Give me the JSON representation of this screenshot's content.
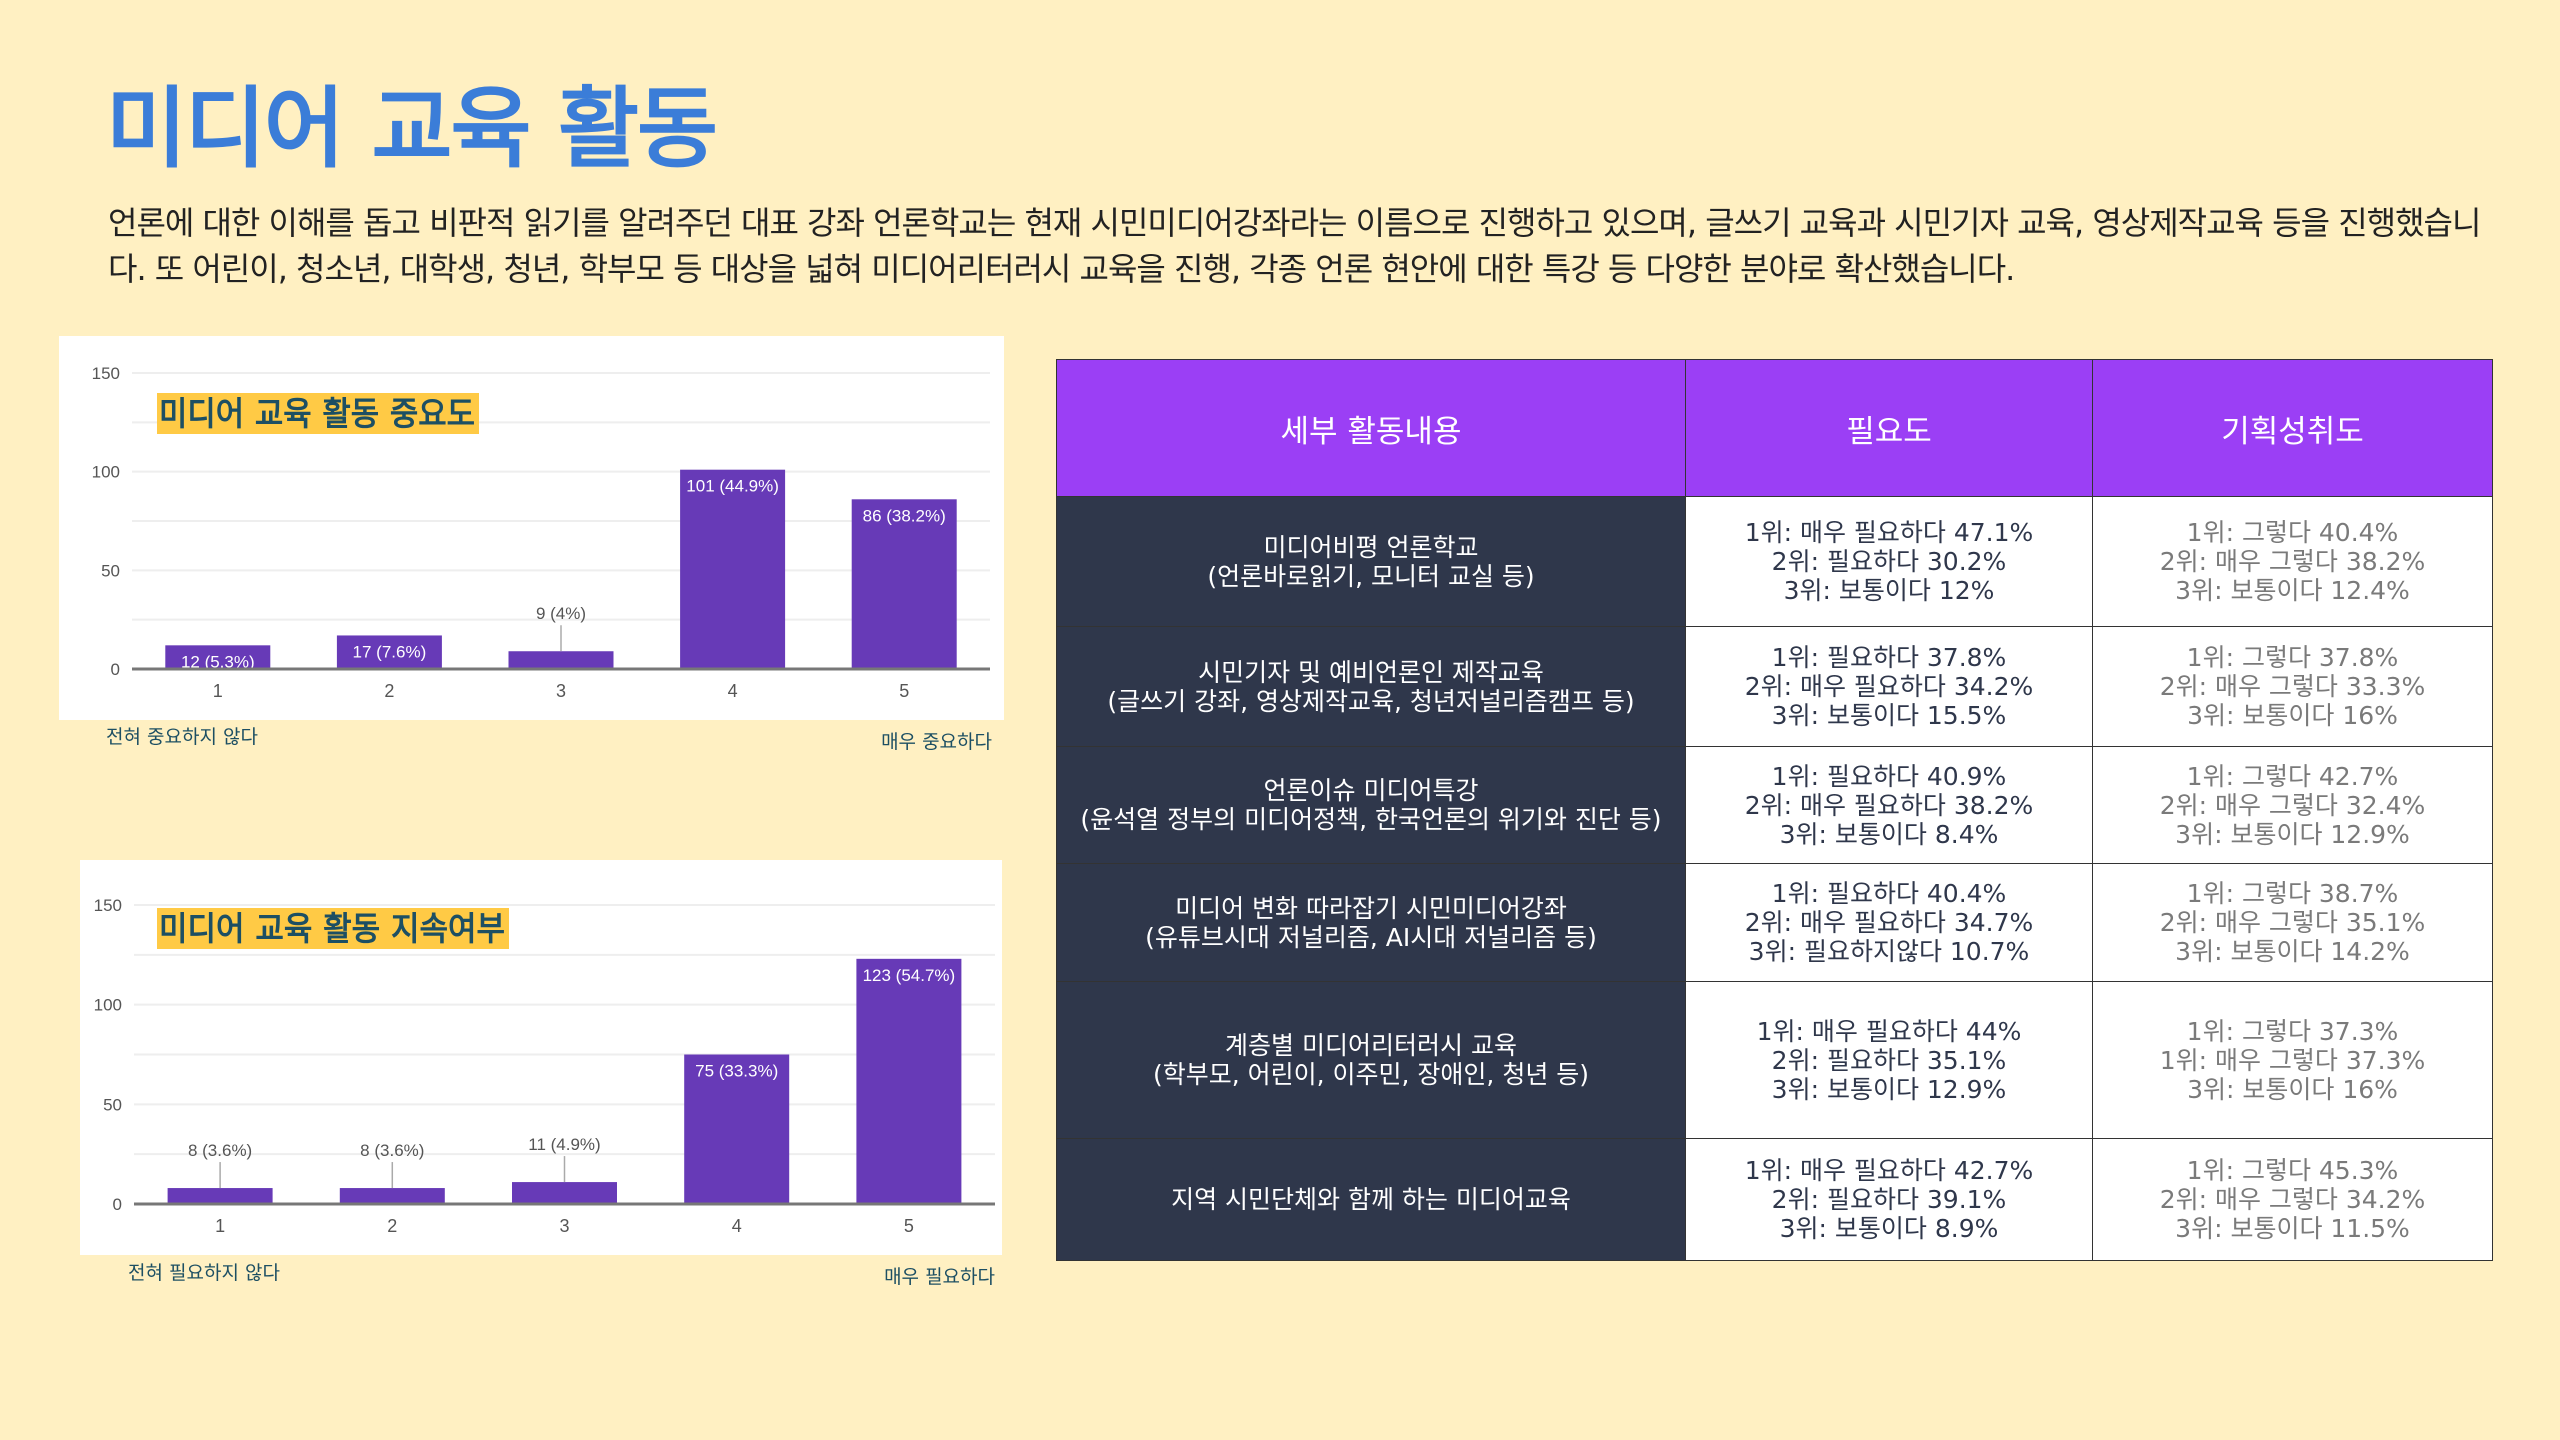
{
  "title": "미디어 교육 활동",
  "intro": "언론에 대한 이해를 돕고 비판적 읽기를 알려주던 대표 강좌 언론학교는 현재 시민미디어강좌라는 이름으로 진행하고 있으며, 글쓰기 교육과 시민기자 교육, 영상제작교육 등을 진행했습니다. 또 어린이, 청소년, 대학생, 청년, 학부모 등 대상을 넓혀 미디어리터러시 교육을 진행, 각종 언론 현안에 대한 특강 등 다양한 분야로 확산했습니다.",
  "colors": {
    "background": "#fff0c2",
    "title": "#3b7dd8",
    "bar": "#673ab7",
    "header": "#9b3ff5",
    "activity_cell": "#2f374b",
    "chart_title_bg": "#ffca45"
  },
  "chart_data": [
    {
      "type": "bar",
      "title": "미디어 교육 활동 중요도",
      "categories": [
        "1",
        "2",
        "3",
        "4",
        "5"
      ],
      "values": [
        12,
        17,
        9,
        101,
        86
      ],
      "data_labels": [
        "12 (5.3%)",
        "17 (7.6%)",
        "9 (4%)",
        "101 (44.9%)",
        "86 (38.2%)"
      ],
      "yticks": [
        "0",
        "50",
        "100",
        "150"
      ],
      "ylim": [
        0,
        150
      ],
      "grid": true,
      "low_label": "전혀 중요하지 않다",
      "high_label": "매우 중요하다"
    },
    {
      "type": "bar",
      "title": "미디어 교육 활동 지속여부",
      "categories": [
        "1",
        "2",
        "3",
        "4",
        "5"
      ],
      "values": [
        8,
        8,
        11,
        75,
        123
      ],
      "data_labels": [
        "8 (3.6%)",
        "8 (3.6%)",
        "11 (4.9%)",
        "75 (33.3%)",
        "123 (54.7%)"
      ],
      "yticks": [
        "0",
        "50",
        "100",
        "150"
      ],
      "ylim": [
        0,
        150
      ],
      "grid": true,
      "low_label": "전혀 필요하지  않다",
      "high_label": "매우 필요하다"
    }
  ],
  "table": {
    "headers": [
      "세부 활동내용",
      "필요도",
      "기획성취도"
    ],
    "rows": [
      {
        "activity": [
          "미디어비평 언론학교",
          "(언론바로읽기, 모니터 교실 등)"
        ],
        "need": [
          "1위: 매우 필요하다 47.1%",
          "2위: 필요하다 30.2%",
          "3위: 보통이다 12%"
        ],
        "achievement": [
          "1위: 그렇다 40.4%",
          "2위: 매우 그렇다 38.2%",
          "3위: 보통이다 12.4%"
        ]
      },
      {
        "activity": [
          "시민기자 및 예비언론인 제작교육",
          "(글쓰기 강좌, 영상제작교육, 청년저널리즘캠프 등)"
        ],
        "need": [
          "1위: 필요하다 37.8%",
          "2위: 매우 필요하다 34.2%",
          "3위: 보통이다 15.5%"
        ],
        "achievement": [
          "1위: 그렇다 37.8%",
          "2위: 매우 그렇다 33.3%",
          "3위: 보통이다 16%"
        ]
      },
      {
        "activity": [
          "언론이슈 미디어특강",
          "(윤석열 정부의 미디어정책, 한국언론의 위기와 진단 등)"
        ],
        "need": [
          "1위: 필요하다 40.9%",
          "2위: 매우 필요하다 38.2%",
          "3위: 보통이다 8.4%"
        ],
        "achievement": [
          "1위: 그렇다 42.7%",
          "2위: 매우 그렇다 32.4%",
          "3위: 보통이다 12.9%"
        ]
      },
      {
        "activity": [
          "미디어 변화 따라잡기 시민미디어강좌",
          "(유튜브시대 저널리즘, AI시대 저널리즘 등)"
        ],
        "need": [
          "1위: 필요하다 40.4%",
          "2위: 매우 필요하다 34.7%",
          "3위: 필요하지않다 10.7%"
        ],
        "achievement": [
          "1위: 그렇다 38.7%",
          "2위: 매우 그렇다 35.1%",
          "3위: 보통이다 14.2%"
        ]
      },
      {
        "activity": [
          "계층별 미디어리터러시 교육",
          "(학부모, 어린이, 이주민, 장애인, 청년 등)"
        ],
        "need": [
          "1위: 매우 필요하다 44%",
          "2위: 필요하다 35.1%",
          "3위: 보통이다 12.9%"
        ],
        "achievement": [
          "1위: 그렇다 37.3%",
          "1위: 매우 그렇다 37.3%",
          "3위: 보통이다 16%"
        ]
      },
      {
        "activity": [
          "지역 시민단체와 함께 하는 미디어교육"
        ],
        "need": [
          "1위: 매우 필요하다 42.7%",
          "2위: 필요하다 39.1%",
          "3위: 보통이다 8.9%"
        ],
        "achievement": [
          "1위: 그렇다 45.3%",
          "2위: 매우 그렇다 34.2%",
          "3위: 보통이다 11.5%"
        ]
      }
    ]
  }
}
